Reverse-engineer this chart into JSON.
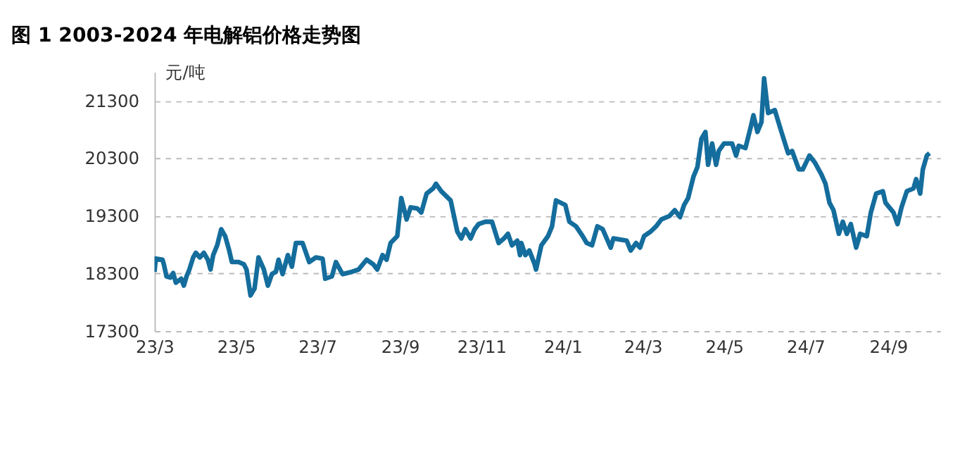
{
  "chart_data": {
    "type": "line",
    "title": "图 1 2003-2024 年电解铝价格走势图",
    "ylabel": "元/吨",
    "xlim": [
      "2023-03-01",
      "2024-10-10"
    ],
    "xticks": [
      {
        "value": "2023-03-01",
        "label": "23/3"
      },
      {
        "value": "2023-05-01",
        "label": "23/5"
      },
      {
        "value": "2023-07-01",
        "label": "23/7"
      },
      {
        "value": "2023-09-01",
        "label": "23/9"
      },
      {
        "value": "2023-11-01",
        "label": "23/11"
      },
      {
        "value": "2024-01-01",
        "label": "24/1"
      },
      {
        "value": "2024-03-01",
        "label": "24/3"
      },
      {
        "value": "2024-05-01",
        "label": "24/5"
      },
      {
        "value": "2024-07-01",
        "label": "24/7"
      },
      {
        "value": "2024-09-01",
        "label": "24/9"
      }
    ],
    "ylim": [
      17300,
      21800
    ],
    "yticks": [
      17300,
      18300,
      19300,
      20300,
      21300
    ],
    "grid": "y",
    "legend": false,
    "line_style": "solid",
    "marker": "none",
    "series": [
      {
        "color": "#146d9c",
        "x": [
          "2023-03-01",
          "2023-03-02",
          "2023-03-07",
          "2023-03-08",
          "2023-03-10",
          "2023-03-13",
          "2023-03-15",
          "2023-03-17",
          "2023-03-21",
          "2023-03-23",
          "2023-03-25",
          "2023-03-27",
          "2023-03-30",
          "2023-04-01",
          "2023-04-04",
          "2023-04-07",
          "2023-04-10",
          "2023-04-12",
          "2023-04-14",
          "2023-04-17",
          "2023-04-20",
          "2023-04-23",
          "2023-04-26",
          "2023-04-28",
          "2023-05-03",
          "2023-05-07",
          "2023-05-09",
          "2023-05-12",
          "2023-05-15",
          "2023-05-18",
          "2023-05-22",
          "2023-05-25",
          "2023-05-28",
          "2023-05-31",
          "2023-06-02",
          "2023-06-05",
          "2023-06-09",
          "2023-06-12",
          "2023-06-15",
          "2023-06-20",
          "2023-06-25",
          "2023-06-30",
          "2023-07-05",
          "2023-07-07",
          "2023-07-12",
          "2023-07-15",
          "2023-07-20",
          "2023-07-27",
          "2023-08-01",
          "2023-08-07",
          "2023-08-12",
          "2023-08-15",
          "2023-08-19",
          "2023-08-22",
          "2023-08-25",
          "2023-08-30",
          "2023-09-02",
          "2023-09-06",
          "2023-09-09",
          "2023-09-14",
          "2023-09-17",
          "2023-09-21",
          "2023-09-26",
          "2023-09-28",
          "2023-10-02",
          "2023-10-09",
          "2023-10-14",
          "2023-10-17",
          "2023-10-20",
          "2023-10-24",
          "2023-10-27",
          "2023-10-30",
          "2023-11-04",
          "2023-11-09",
          "2023-11-14",
          "2023-11-18",
          "2023-11-21",
          "2023-11-24",
          "2023-11-28",
          "2023-11-30",
          "2023-12-01",
          "2023-12-04",
          "2023-12-07",
          "2023-12-11",
          "2023-12-12",
          "2023-12-16",
          "2023-12-21",
          "2023-12-24",
          "2023-12-27",
          "2024-01-03",
          "2024-01-06",
          "2024-01-11",
          "2024-01-16",
          "2024-01-19",
          "2024-01-23",
          "2024-01-27",
          "2024-01-31",
          "2024-02-06",
          "2024-02-08",
          "2024-02-18",
          "2024-02-21",
          "2024-02-25",
          "2024-02-28",
          "2024-03-02",
          "2024-03-07",
          "2024-03-11",
          "2024-03-15",
          "2024-03-21",
          "2024-03-25",
          "2024-03-29",
          "2024-04-01",
          "2024-04-04",
          "2024-04-08",
          "2024-04-11",
          "2024-04-14",
          "2024-04-17",
          "2024-04-19",
          "2024-04-22",
          "2024-04-25",
          "2024-04-27",
          "2024-05-01",
          "2024-05-07",
          "2024-05-10",
          "2024-05-12",
          "2024-05-17",
          "2024-05-21",
          "2024-05-23",
          "2024-05-26",
          "2024-05-29",
          "2024-05-31",
          "2024-06-03",
          "2024-06-08",
          "2024-06-13",
          "2024-06-18",
          "2024-06-21",
          "2024-06-26",
          "2024-06-29",
          "2024-07-04",
          "2024-07-08",
          "2024-07-13",
          "2024-07-16",
          "2024-07-19",
          "2024-07-22",
          "2024-07-26",
          "2024-07-29",
          "2024-08-01",
          "2024-08-04",
          "2024-08-08",
          "2024-08-11",
          "2024-08-16",
          "2024-08-19",
          "2024-08-23",
          "2024-08-28",
          "2024-08-30",
          "2024-09-05",
          "2024-09-08",
          "2024-09-11",
          "2024-09-15",
          "2024-09-20",
          "2024-09-22",
          "2024-09-25",
          "2024-09-27",
          "2024-09-30",
          "2024-10-02"
        ],
        "values": [
          18330,
          18560,
          18540,
          18460,
          18250,
          18230,
          18310,
          18140,
          18210,
          18090,
          18250,
          18360,
          18580,
          18660,
          18580,
          18660,
          18540,
          18370,
          18620,
          18790,
          19070,
          18950,
          18700,
          18500,
          18500,
          18460,
          18370,
          17920,
          18040,
          18580,
          18370,
          18090,
          18290,
          18330,
          18540,
          18290,
          18620,
          18420,
          18830,
          18830,
          18500,
          18580,
          18560,
          18210,
          18250,
          18500,
          18290,
          18330,
          18370,
          18540,
          18460,
          18370,
          18620,
          18540,
          18830,
          18950,
          19610,
          19240,
          19450,
          19430,
          19360,
          19690,
          19780,
          19860,
          19730,
          19570,
          19030,
          18910,
          19070,
          18910,
          19070,
          19160,
          19200,
          19200,
          18830,
          18910,
          18990,
          18790,
          18870,
          18620,
          18830,
          18620,
          18700,
          18460,
          18370,
          18790,
          18950,
          19120,
          19570,
          19490,
          19200,
          19120,
          18950,
          18830,
          18790,
          19120,
          19070,
          18750,
          18910,
          18870,
          18700,
          18830,
          18750,
          18950,
          19030,
          19120,
          19240,
          19300,
          19400,
          19280,
          19490,
          19610,
          19980,
          20150,
          20640,
          20760,
          20190,
          20560,
          20190,
          20430,
          20560,
          20560,
          20350,
          20520,
          20480,
          20850,
          21050,
          20760,
          20930,
          21690,
          21090,
          21140,
          20760,
          20390,
          20430,
          20110,
          20110,
          20350,
          20230,
          20020,
          19860,
          19530,
          19400,
          18990,
          19200,
          18990,
          19160,
          18750,
          18990,
          18950,
          19360,
          19690,
          19730,
          19530,
          19360,
          19160,
          19450,
          19730,
          19780,
          19940,
          19690,
          20110,
          20350,
          20390
        ]
      }
    ]
  }
}
